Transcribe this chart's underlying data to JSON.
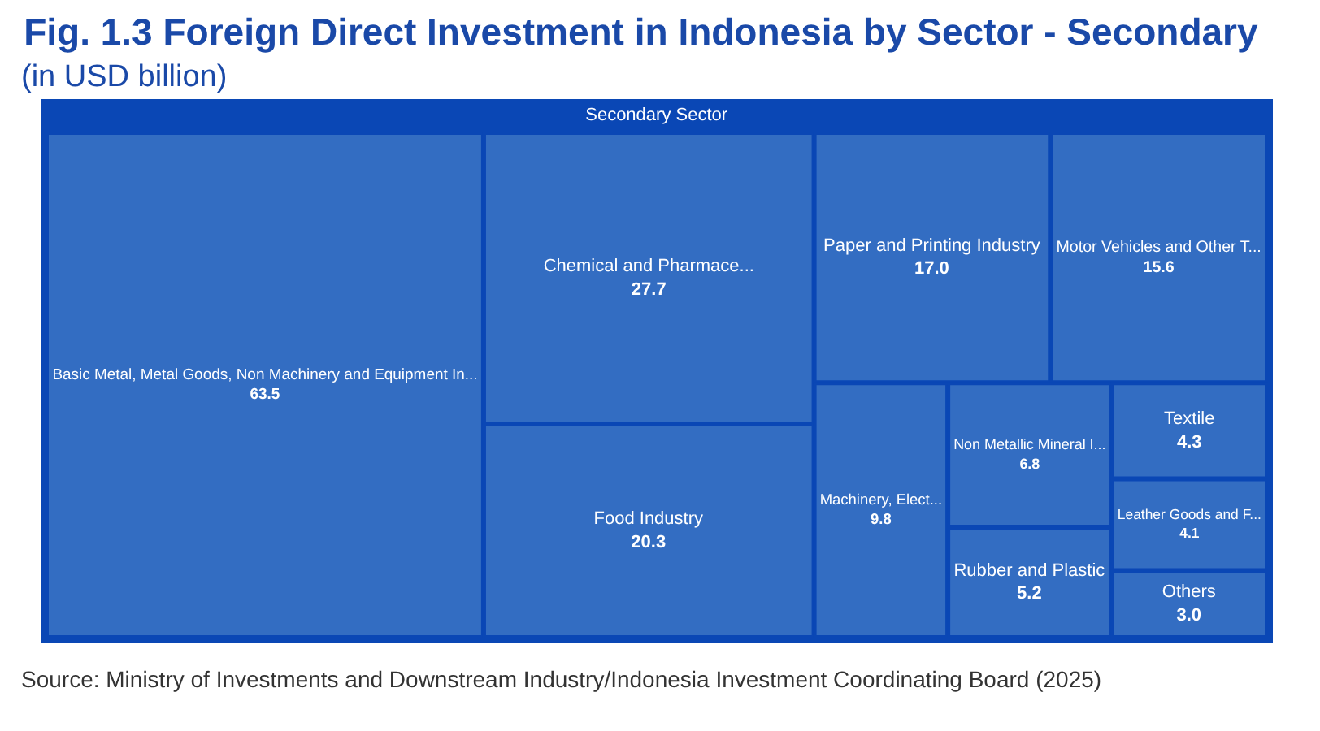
{
  "chart_data": {
    "type": "other",
    "title": "Fig. 1.3 Foreign Direct Investment in Indonesia by Sector - Secondary",
    "subtitle": "(in USD billion)",
    "legend_title": "Secondary Sector",
    "categories": [
      "Basic Metal, Metal Goods, Non Machinery and Equipment In...",
      "Chemical and Pharmace...",
      "Food Industry",
      "Paper and Printing Industry",
      "Motor Vehicles and Other T...",
      "Machinery, Elect...",
      "Non Metallic Mineral I...",
      "Rubber and Plastic",
      "Textile",
      "Leather Goods and F...",
      "Others"
    ],
    "values": [
      63.5,
      27.7,
      20.3,
      17.0,
      15.6,
      9.8,
      6.8,
      5.2,
      4.3,
      4.1,
      3.0
    ],
    "value_labels": [
      "63.5",
      "27.7",
      "20.3",
      "17.0",
      "15.6",
      "9.8",
      "6.8",
      "5.2",
      "4.3",
      "4.1",
      "3.0"
    ],
    "colors": [
      "#336dc2",
      "#336dc2",
      "#336dc2",
      "#336dc2",
      "#336dc2",
      "#336dc2",
      "#336dc2",
      "#336dc2",
      "#336dc2",
      "#336dc2",
      "#336dc2"
    ],
    "annotations": [
      "Source: Ministry of Investments and Downstream Industry/Indonesia Investment Coordinating Board (2025)"
    ]
  }
}
